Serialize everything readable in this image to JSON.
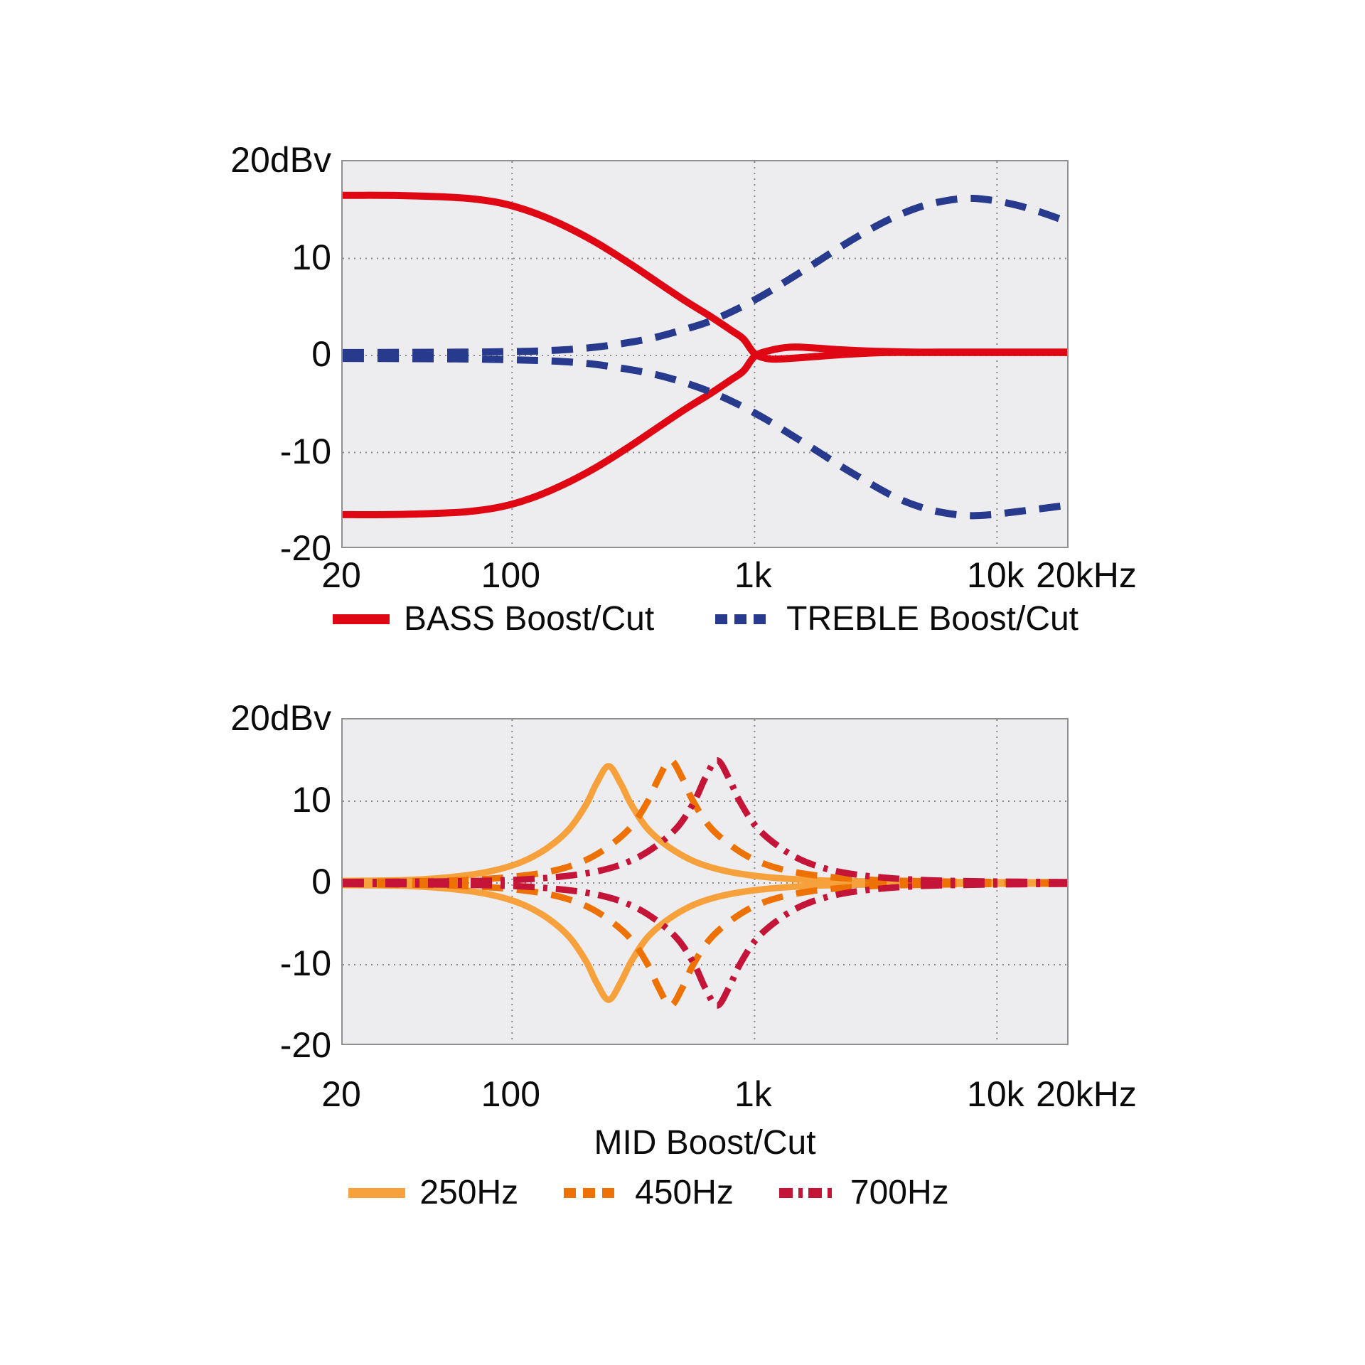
{
  "colors": {
    "bass": "#e00714",
    "treble": "#283a8e",
    "mid_250": "#f6a13c",
    "mid_450": "#ee7103",
    "mid_700": "#c41438",
    "plot_background": "#EDEDEF",
    "plot_border": "#909090",
    "gridline": "#8a8a8a",
    "text": "#0b0b0b"
  },
  "chart_data": [
    {
      "type": "line",
      "title": "",
      "x_unit": "Hz",
      "y_unit": "dBv",
      "x_scale": "log",
      "x_range": [
        20,
        20000
      ],
      "y_range": [
        -20,
        20
      ],
      "grid_x": [
        100,
        1000,
        10000
      ],
      "grid_y": [
        10,
        0,
        -10
      ],
      "x_ticks": [
        {
          "f": 20,
          "label": "20",
          "dx": 0
        },
        {
          "f": 100,
          "label": "100",
          "dx": 0
        },
        {
          "f": 1000,
          "label": "1k",
          "dx": 0
        },
        {
          "f": 10000,
          "label": "10k",
          "dx": 0
        },
        {
          "f": 20000,
          "label": "20kHz",
          "dx": 25
        }
      ],
      "y_ticks": [
        {
          "v": 20,
          "label": "20dBv"
        },
        {
          "v": 10,
          "label": "10"
        },
        {
          "v": 0,
          "label": "0"
        },
        {
          "v": -10,
          "label": "-10"
        },
        {
          "v": -20,
          "label": "-20"
        }
      ],
      "series": [
        {
          "name": "BASS Boost/Cut",
          "color": "#e00714",
          "line_style": "solid",
          "curves": [
            [
              [
                20,
                16.5
              ],
              [
                30,
                16.5
              ],
              [
                45,
                16.4
              ],
              [
                65,
                16.2
              ],
              [
                90,
                15.7
              ],
              [
                120,
                14.8
              ],
              [
                160,
                13.5
              ],
              [
                220,
                11.7
              ],
              [
                300,
                9.6
              ],
              [
                400,
                7.5
              ],
              [
                520,
                5.6
              ],
              [
                650,
                4.1
              ],
              [
                800,
                2.6
              ],
              [
                900,
                1.7
              ],
              [
                1000,
                0.2
              ],
              [
                1150,
                -0.35
              ],
              [
                1400,
                -0.3
              ],
              [
                1800,
                -0.1
              ],
              [
                2500,
                0.15
              ],
              [
                3500,
                0.3
              ],
              [
                5000,
                0.3
              ],
              [
                10000,
                0.3
              ],
              [
                20000,
                0.3
              ]
            ],
            [
              [
                20,
                -16.4
              ],
              [
                30,
                -16.4
              ],
              [
                45,
                -16.3
              ],
              [
                65,
                -16.1
              ],
              [
                90,
                -15.6
              ],
              [
                120,
                -14.7
              ],
              [
                160,
                -13.4
              ],
              [
                220,
                -11.6
              ],
              [
                300,
                -9.5
              ],
              [
                400,
                -7.4
              ],
              [
                520,
                -5.5
              ],
              [
                650,
                -4.0
              ],
              [
                800,
                -2.5
              ],
              [
                900,
                -1.6
              ],
              [
                1000,
                -0.1
              ],
              [
                1150,
                0.5
              ],
              [
                1400,
                0.85
              ],
              [
                1700,
                0.8
              ],
              [
                2200,
                0.6
              ],
              [
                3000,
                0.45
              ],
              [
                4500,
                0.35
              ],
              [
                7000,
                0.35
              ],
              [
                12000,
                0.35
              ],
              [
                20000,
                0.35
              ]
            ]
          ]
        },
        {
          "name": "TREBLE Boost/Cut",
          "color": "#283a8e",
          "line_style": "dashed",
          "curves": [
            [
              [
                20,
                0.3
              ],
              [
                40,
                0.32
              ],
              [
                70,
                0.35
              ],
              [
                100,
                0.4
              ],
              [
                140,
                0.5
              ],
              [
                200,
                0.75
              ],
              [
                280,
                1.2
              ],
              [
                380,
                1.8
              ],
              [
                500,
                2.6
              ],
              [
                650,
                3.5
              ],
              [
                850,
                4.8
              ],
              [
                1100,
                6.3
              ],
              [
                1400,
                7.9
              ],
              [
                1800,
                9.6
              ],
              [
                2300,
                11.3
              ],
              [
                3000,
                13.0
              ],
              [
                3800,
                14.3
              ],
              [
                4800,
                15.3
              ],
              [
                6000,
                15.9
              ],
              [
                7600,
                16.2
              ],
              [
                9500,
                16.0
              ],
              [
                12000,
                15.5
              ],
              [
                15000,
                14.8
              ],
              [
                20000,
                13.7
              ]
            ],
            [
              [
                20,
                -0.3
              ],
              [
                40,
                -0.33
              ],
              [
                70,
                -0.37
              ],
              [
                100,
                -0.45
              ],
              [
                140,
                -0.55
              ],
              [
                200,
                -0.8
              ],
              [
                280,
                -1.3
              ],
              [
                380,
                -1.9
              ],
              [
                500,
                -2.7
              ],
              [
                650,
                -3.7
              ],
              [
                850,
                -5.0
              ],
              [
                1100,
                -6.5
              ],
              [
                1400,
                -8.1
              ],
              [
                1800,
                -9.8
              ],
              [
                2300,
                -11.5
              ],
              [
                3000,
                -13.2
              ],
              [
                3800,
                -14.6
              ],
              [
                4800,
                -15.6
              ],
              [
                6000,
                -16.2
              ],
              [
                7600,
                -16.5
              ],
              [
                9500,
                -16.4
              ],
              [
                12000,
                -16.1
              ],
              [
                15000,
                -15.8
              ],
              [
                20000,
                -15.4
              ]
            ]
          ]
        }
      ]
    },
    {
      "type": "line",
      "title": "MID Boost/Cut",
      "x_unit": "Hz",
      "y_unit": "dBv",
      "x_scale": "log",
      "x_range": [
        20,
        20000
      ],
      "y_range": [
        -20,
        20
      ],
      "grid_x": [
        100,
        1000,
        10000
      ],
      "grid_y": [
        10,
        0,
        -10
      ],
      "x_ticks": [
        {
          "f": 20,
          "label": "20",
          "dx": 0
        },
        {
          "f": 100,
          "label": "100",
          "dx": 0
        },
        {
          "f": 1000,
          "label": "1k",
          "dx": 0
        },
        {
          "f": 10000,
          "label": "10k",
          "dx": 0
        },
        {
          "f": 20000,
          "label": "20kHz",
          "dx": 25
        }
      ],
      "y_ticks": [
        {
          "v": 20,
          "label": "20dBv"
        },
        {
          "v": 10,
          "label": "10"
        },
        {
          "v": 0,
          "label": "0"
        },
        {
          "v": -10,
          "label": "-10"
        },
        {
          "v": -20,
          "label": "-20"
        }
      ],
      "series": [
        {
          "name": "250Hz",
          "color": "#f6a13c",
          "line_style": "solid",
          "mirror_cut": true,
          "points": [
            [
              20,
              0.25
            ],
            [
              36,
              0.35
            ],
            [
              57,
              0.75
            ],
            [
              82,
              1.45
            ],
            [
              110,
              2.6
            ],
            [
              140,
              4.3
            ],
            [
              172,
              6.6
            ],
            [
              202,
              9.6
            ],
            [
              223,
              12.2
            ],
            [
              250,
              14.3
            ],
            [
              280,
              12.2
            ],
            [
              310,
              9.6
            ],
            [
              363,
              6.6
            ],
            [
              448,
              4.3
            ],
            [
              568,
              2.6
            ],
            [
              763,
              1.45
            ],
            [
              1100,
              0.75
            ],
            [
              1725,
              0.35
            ],
            [
              3125,
              0.18
            ],
            [
              8000,
              0.1
            ],
            [
              20000,
              0.08
            ]
          ]
        },
        {
          "name": "450Hz",
          "color": "#ee7103",
          "line_style": "dashed",
          "mirror_cut": true,
          "points": [
            [
              20,
              0.15
            ],
            [
              36,
              0.2
            ],
            [
              65,
              0.37
            ],
            [
              102,
              0.78
            ],
            [
              148,
              1.5
            ],
            [
              198,
              2.7
            ],
            [
              251,
              4.5
            ],
            [
              310,
              6.9
            ],
            [
              363,
              10.0
            ],
            [
              402,
              12.8
            ],
            [
              450,
              15.0
            ],
            [
              504,
              12.8
            ],
            [
              558,
              10.0
            ],
            [
              653,
              6.9
            ],
            [
              806,
              4.5
            ],
            [
              1022,
              2.7
            ],
            [
              1373,
              1.5
            ],
            [
              1980,
              0.78
            ],
            [
              3105,
              0.37
            ],
            [
              5625,
              0.2
            ],
            [
              12000,
              0.1
            ],
            [
              20000,
              0.08
            ]
          ]
        },
        {
          "name": "700Hz",
          "color": "#c41438",
          "line_style": "dash-dot",
          "mirror_cut": true,
          "points": [
            [
              20,
              0.12
            ],
            [
              35,
              0.15
            ],
            [
              56,
              0.2
            ],
            [
              101,
              0.37
            ],
            [
              159,
              0.78
            ],
            [
              230,
              1.5
            ],
            [
              308,
              2.7
            ],
            [
              391,
              4.5
            ],
            [
              483,
              6.9
            ],
            [
              565,
              10.0
            ],
            [
              625,
              12.8
            ],
            [
              700,
              15.0
            ],
            [
              784,
              12.8
            ],
            [
              868,
              10.0
            ],
            [
              1015,
              6.9
            ],
            [
              1253,
              4.5
            ],
            [
              1589,
              2.7
            ],
            [
              2135,
              1.5
            ],
            [
              3080,
              0.78
            ],
            [
              4830,
              0.37
            ],
            [
              8750,
              0.2
            ],
            [
              20000,
              0.1
            ]
          ]
        }
      ]
    }
  ]
}
